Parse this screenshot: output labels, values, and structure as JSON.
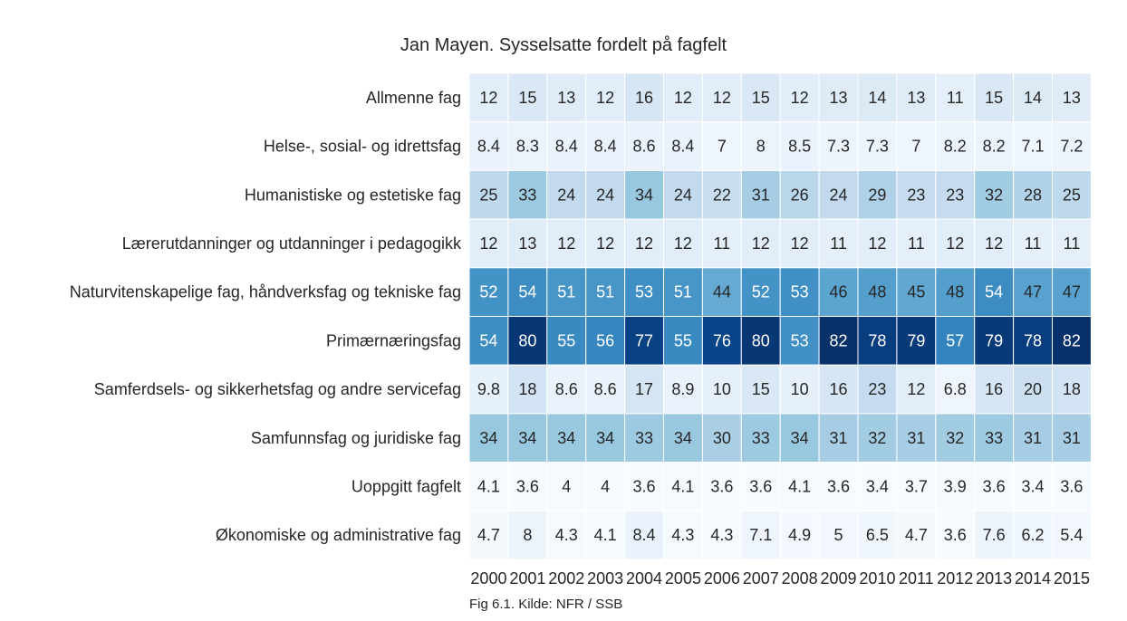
{
  "chart_data": {
    "type": "heatmap",
    "title": "Jan Mayen. Sysselsatte fordelt på fagfelt",
    "caption": "Fig 6.1. Kilde: NFR / SSB",
    "x": [
      "2000",
      "2001",
      "2002",
      "2003",
      "2004",
      "2005",
      "2006",
      "2007",
      "2008",
      "2009",
      "2010",
      "2011",
      "2012",
      "2013",
      "2014",
      "2015"
    ],
    "y": [
      "Allmenne fag",
      "Helse-, sosial- og idrettsfag",
      "Humanistiske og estetiske fag",
      "Lærerutdanninger og utdanninger i pedagogikk",
      "Naturvitenskapelige fag, håndverksfag og tekniske fag",
      "Primærnæringsfag",
      "Samferdsels- og sikkerhetsfag og andre servicefag",
      "Samfunnsfag og juridiske fag",
      "Uoppgitt fagfelt",
      "Økonomiske og administrative fag"
    ],
    "values": [
      [
        12,
        15,
        13,
        12,
        16,
        12,
        12,
        15,
        12,
        13,
        14,
        13,
        11,
        15,
        14,
        13
      ],
      [
        8.4,
        8.3,
        8.4,
        8.4,
        8.6,
        8.4,
        7,
        8,
        8.5,
        7.3,
        7.3,
        7,
        8.2,
        8.2,
        7.1,
        7.2
      ],
      [
        25,
        33,
        24,
        24,
        34,
        24,
        22,
        31,
        26,
        24,
        29,
        23,
        23,
        32,
        28,
        25
      ],
      [
        12,
        13,
        12,
        12,
        12,
        12,
        11,
        12,
        12,
        11,
        12,
        11,
        12,
        12,
        11,
        11
      ],
      [
        52,
        54,
        51,
        51,
        53,
        51,
        44,
        52,
        53,
        46,
        48,
        45,
        48,
        54,
        47,
        47
      ],
      [
        54,
        80,
        55,
        56,
        77,
        55,
        76,
        80,
        53,
        82,
        78,
        79,
        57,
        79,
        78,
        82
      ],
      [
        9.8,
        18,
        8.6,
        8.6,
        17,
        8.9,
        10,
        15,
        10,
        16,
        23,
        12,
        6.8,
        16,
        20,
        18
      ],
      [
        34,
        34,
        34,
        34,
        33,
        34,
        30,
        33,
        34,
        31,
        32,
        31,
        32,
        33,
        31,
        31
      ],
      [
        4.1,
        3.6,
        4,
        4,
        3.6,
        4.1,
        3.6,
        3.6,
        4.1,
        3.6,
        3.4,
        3.7,
        3.9,
        3.6,
        3.4,
        3.6
      ],
      [
        4.7,
        8,
        4.3,
        4.1,
        8.4,
        4.3,
        4.3,
        7.1,
        4.9,
        5,
        6.5,
        4.7,
        3.6,
        7.6,
        6.2,
        5.4
      ]
    ],
    "colormap": "Blues",
    "vmin": 3.4,
    "vmax": 82,
    "colors": {
      "low": "#f7fbff",
      "high": "#08306b",
      "grid_line": "#ffffff",
      "text_dark": "#262626",
      "text_light": "#ffffff"
    }
  }
}
